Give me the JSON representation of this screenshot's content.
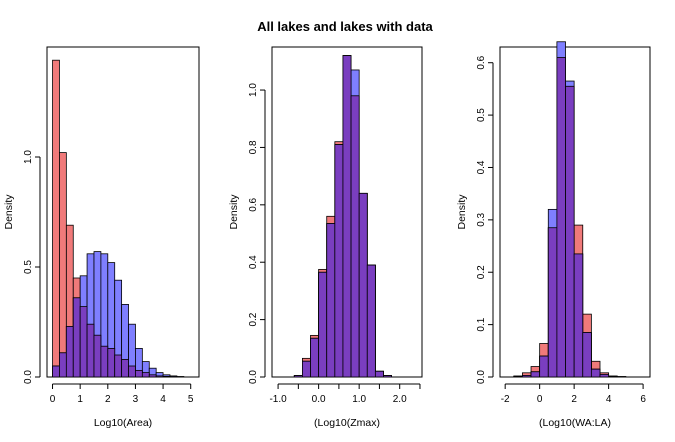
{
  "title": "All lakes and lakes with data",
  "colors": {
    "all_lakes": "#f07a7a",
    "lakes_with_data": "#7f7fff",
    "overlap": "#7a3ec0",
    "bar_stroke": "#000000"
  },
  "chart_data": [
    {
      "type": "bar",
      "xlabel": "Log10(Area)",
      "ylabel": "Density",
      "xlim": [
        -0.2,
        5.3
      ],
      "ylim": [
        0,
        1.5
      ],
      "xticks": [
        0,
        1,
        2,
        3,
        4,
        5
      ],
      "xtick_labels": [
        "0",
        "1",
        "2",
        "3",
        "4",
        "5"
      ],
      "yticks": [
        0.0,
        0.5,
        1.0
      ],
      "ytick_labels": [
        "0.0",
        "0.5",
        "1.0"
      ],
      "bin_width": 0.25,
      "bin_start": 0,
      "series": [
        {
          "values": [
            1.44,
            1.02,
            0.69,
            0.45,
            0.32,
            0.24,
            0.19,
            0.14,
            0.13,
            0.1,
            0.08,
            0.05,
            0.03,
            0.02,
            0.01,
            0.005,
            0.003,
            0.002,
            0.001
          ]
        },
        {
          "values": [
            0.05,
            0.11,
            0.23,
            0.36,
            0.46,
            0.56,
            0.57,
            0.56,
            0.52,
            0.44,
            0.33,
            0.24,
            0.13,
            0.07,
            0.04,
            0.02,
            0.01,
            0.005,
            0.002
          ]
        }
      ]
    },
    {
      "type": "bar",
      "xlabel": "(Log10(Zmax)",
      "ylabel": "Density",
      "xlim": [
        -1.15,
        2.55
      ],
      "ylim": [
        0,
        1.15
      ],
      "xticks": [
        -1.0,
        -0.5,
        0.0,
        0.5,
        1.0,
        1.5,
        2.0,
        2.5
      ],
      "xtick_labels": [
        "-1.0",
        "",
        "0.0",
        "",
        "1.0",
        "",
        "2.0",
        ""
      ],
      "yticks": [
        0.0,
        0.2,
        0.4,
        0.6,
        0.8,
        1.0
      ],
      "ytick_labels": [
        "0.0",
        "0.2",
        "0.4",
        "0.6",
        "0.8",
        "1.0"
      ],
      "bin_width": 0.2,
      "bin_start": -0.8,
      "series": [
        {
          "values": [
            0.0,
            0.005,
            0.065,
            0.145,
            0.375,
            0.56,
            0.82,
            1.12,
            0.98,
            0.64,
            0.39,
            0.02,
            0.005
          ]
        },
        {
          "values": [
            0.0,
            0.005,
            0.055,
            0.135,
            0.365,
            0.535,
            0.81,
            1.12,
            1.07,
            0.64,
            0.39,
            0.02,
            0.005
          ]
        }
      ]
    },
    {
      "type": "bar",
      "xlabel": "(Log10(WA:LA)",
      "ylabel": "Density",
      "xlim": [
        -2.3,
        6.4
      ],
      "ylim": [
        0,
        0.63
      ],
      "xticks": [
        -2,
        0,
        2,
        4,
        6
      ],
      "xtick_labels": [
        "-2",
        "0",
        "2",
        "4",
        "6"
      ],
      "yticks": [
        0.0,
        0.1,
        0.2,
        0.3,
        0.4,
        0.5,
        0.6
      ],
      "ytick_labels": [
        "0.0",
        "0.1",
        "0.2",
        "0.3",
        "0.4",
        "0.5",
        "0.6"
      ],
      "bin_width": 0.5,
      "bin_start": -1.5,
      "series": [
        {
          "values": [
            0.002,
            0.008,
            0.02,
            0.064,
            0.285,
            0.61,
            0.555,
            0.29,
            0.12,
            0.03,
            0.008,
            0.002,
            0.001
          ]
        },
        {
          "values": [
            0.001,
            0.003,
            0.01,
            0.04,
            0.32,
            0.64,
            0.565,
            0.235,
            0.085,
            0.015,
            0.005,
            0.001,
            0.0
          ]
        }
      ]
    }
  ]
}
